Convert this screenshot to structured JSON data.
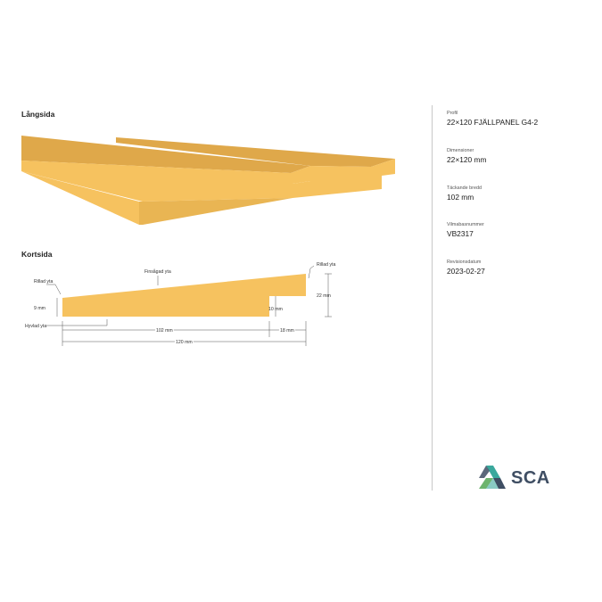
{
  "sections": {
    "long_side": "Långsida",
    "short_side": "Kortsida"
  },
  "annotations": {
    "rillad_left": "Rillad yta",
    "rillad_right": "Rillad yta",
    "finsagad": "Finsågad yta",
    "hyvlad": "Hyvlad yta"
  },
  "dimensions": {
    "d9": "9 mm",
    "d10": "10 mm",
    "d22": "22 mm",
    "d102": "102 mm",
    "d18": "18 mm",
    "d120": "120 mm"
  },
  "info": [
    {
      "label": "Profil",
      "value": "22×120 FJÄLLPANEL G4-2"
    },
    {
      "label": "Dimensioner",
      "value": "22×120 mm"
    },
    {
      "label": "Täckande bredd",
      "value": "102 mm"
    },
    {
      "label": "Vilmabasnummer",
      "value": "VB2317"
    },
    {
      "label": "Revisionsdatum",
      "value": "2023-02-27"
    }
  ],
  "logo": {
    "text": "SCA"
  },
  "colors": {
    "wood_top": "#dfa84a",
    "wood_side": "#f6c25f",
    "wood_front": "#e9b553",
    "logo_teal": "#3aa89c",
    "logo_green": "#6db46e",
    "logo_blue": "#3f4e63"
  }
}
